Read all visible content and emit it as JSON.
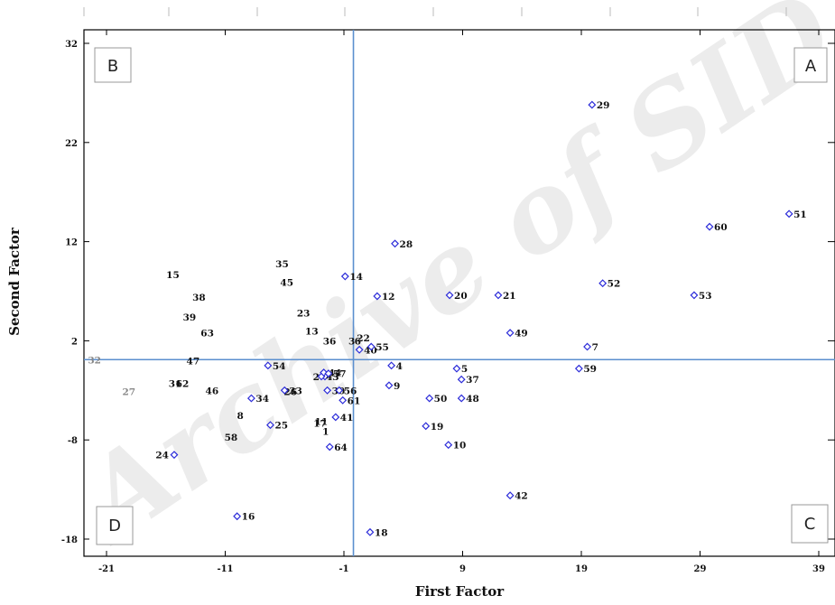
{
  "watermark": "Archive of SID",
  "chart_data": {
    "type": "scatter",
    "xlabel": "First Factor",
    "ylabel": "Second Factor",
    "xlim": [
      -21,
      39
    ],
    "ylim": [
      -18,
      32
    ],
    "xticks": [
      -21,
      -11,
      -1,
      9,
      19,
      29,
      39
    ],
    "yticks": [
      -18,
      -8,
      2,
      12,
      22,
      32
    ],
    "xtick_labels": [
      "-21",
      "-11",
      "-1",
      "9",
      "19",
      "29",
      "39"
    ],
    "ytick_labels": [
      "-18",
      "-8",
      "2",
      "12",
      "22",
      "32"
    ],
    "reference_lines": {
      "x": -0.2,
      "y": 0.1
    },
    "quadrant_labels": [
      "A",
      "B",
      "C",
      "D"
    ],
    "marker_color": "#2b2bd9",
    "line_color": "#5b8fcf",
    "points": [
      {
        "label": "1",
        "x": -1.8,
        "y": -7.1
      },
      {
        "label": "2",
        "x": -2.6,
        "y": -1.6
      },
      {
        "label": "3",
        "x": -1.0,
        "y": 2.0
      },
      {
        "label": "4",
        "x": 3.0,
        "y": -0.5
      },
      {
        "label": "5",
        "x": 8.5,
        "y": -0.8
      },
      {
        "label": "6",
        "x": -0.5,
        "y": 2.0
      },
      {
        "label": "7",
        "x": 19.5,
        "y": 1.4
      },
      {
        "label": "8",
        "x": -9.0,
        "y": -5.5
      },
      {
        "label": "9",
        "x": 2.8,
        "y": -2.5
      },
      {
        "label": "10",
        "x": 7.8,
        "y": -8.5
      },
      {
        "label": "11",
        "x": -1.9,
        "y": -6.1
      },
      {
        "label": "12",
        "x": 1.8,
        "y": 6.5
      },
      {
        "label": "13",
        "x": -2.7,
        "y": 3.0
      },
      {
        "label": "14",
        "x": -0.9,
        "y": 8.5
      },
      {
        "label": "15",
        "x": -14.4,
        "y": 8.7
      },
      {
        "label": "16",
        "x": -10.0,
        "y": -15.7
      },
      {
        "label": "17",
        "x": -2.0,
        "y": -6.3
      },
      {
        "label": "18",
        "x": 1.2,
        "y": -17.3
      },
      {
        "label": "19",
        "x": 5.9,
        "y": -6.6
      },
      {
        "label": "20",
        "x": 7.9,
        "y": 6.6
      },
      {
        "label": "21",
        "x": 12.0,
        "y": 6.6
      },
      {
        "label": "22",
        "x": -0.3,
        "y": 2.3
      },
      {
        "label": "23",
        "x": -3.4,
        "y": 4.8
      },
      {
        "label": "24",
        "x": -15.3,
        "y": -9.5
      },
      {
        "label": "25",
        "x": -7.2,
        "y": -6.5
      },
      {
        "label": "26",
        "x": -4.5,
        "y": -3.1
      },
      {
        "label": "27",
        "x": -18.1,
        "y": -3.1
      },
      {
        "label": "28",
        "x": 3.3,
        "y": 11.8
      },
      {
        "label": "29",
        "x": 19.9,
        "y": 25.8
      },
      {
        "label": "30",
        "x": -2.4,
        "y": -3.0
      },
      {
        "label": "31",
        "x": -14.2,
        "y": -2.3
      },
      {
        "label": "32",
        "x": -21.0,
        "y": 0.1
      },
      {
        "label": "33",
        "x": -6.0,
        "y": -3.0
      },
      {
        "label": "34",
        "x": -8.8,
        "y": -3.8
      },
      {
        "label": "35",
        "x": -5.2,
        "y": 9.8
      },
      {
        "label": "36",
        "x": -1.2,
        "y": 2.0
      },
      {
        "label": "37",
        "x": 8.9,
        "y": -1.9
      },
      {
        "label": "38",
        "x": -12.2,
        "y": 6.4
      },
      {
        "label": "39",
        "x": -13.0,
        "y": 4.4
      },
      {
        "label": "40",
        "x": 0.3,
        "y": 1.1
      },
      {
        "label": "41",
        "x": -1.7,
        "y": -5.7
      },
      {
        "label": "42",
        "x": 13.0,
        "y": -13.6
      },
      {
        "label": "43",
        "x": -2.9,
        "y": -1.6
      },
      {
        "label": "44",
        "x": -2.7,
        "y": -1.2
      },
      {
        "label": "45",
        "x": -4.8,
        "y": 7.9
      },
      {
        "label": "46",
        "x": -11.1,
        "y": -3.0
      },
      {
        "label": "47",
        "x": -12.7,
        "y": 0.0
      },
      {
        "label": "48",
        "x": 8.9,
        "y": -3.8
      },
      {
        "label": "49",
        "x": 13.0,
        "y": 2.8
      },
      {
        "label": "50",
        "x": 6.2,
        "y": -3.8
      },
      {
        "label": "51",
        "x": 36.5,
        "y": 14.8
      },
      {
        "label": "52",
        "x": 20.8,
        "y": 7.8
      },
      {
        "label": "53",
        "x": 28.5,
        "y": 6.6
      },
      {
        "label": "54",
        "x": -7.4,
        "y": -0.5
      },
      {
        "label": "55",
        "x": 1.3,
        "y": 1.4
      },
      {
        "label": "56",
        "x": -1.4,
        "y": -3.0
      },
      {
        "label": "57",
        "x": -2.3,
        "y": -1.3
      },
      {
        "label": "58",
        "x": -9.5,
        "y": -7.7
      },
      {
        "label": "59",
        "x": 18.8,
        "y": -0.8
      },
      {
        "label": "60",
        "x": 29.8,
        "y": 13.5
      },
      {
        "label": "61",
        "x": -1.1,
        "y": -4.0
      },
      {
        "label": "62",
        "x": -13.6,
        "y": -2.3
      },
      {
        "label": "63",
        "x": -11.5,
        "y": 2.8
      },
      {
        "label": "64",
        "x": -2.2,
        "y": -8.7
      }
    ]
  }
}
